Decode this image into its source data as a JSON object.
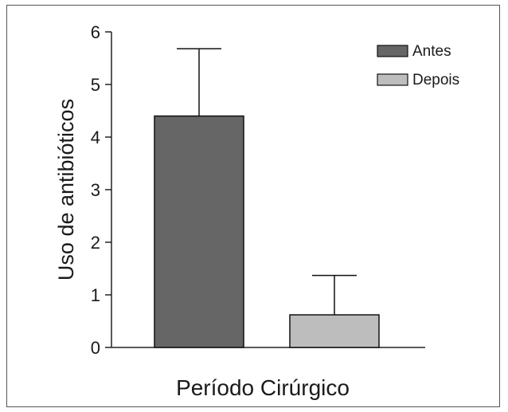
{
  "chart_data": {
    "type": "bar",
    "title": "",
    "xlabel": "Período Cirúrgico",
    "ylabel": "Uso de antibióticos",
    "ylim": [
      0,
      6
    ],
    "yticks": [
      "0",
      "1",
      "2",
      "3",
      "4",
      "5",
      "6"
    ],
    "grid": false,
    "legend_position": "top-right",
    "series": [
      {
        "name": "Antes",
        "value": 4.4,
        "error": 1.28,
        "color": "#666666"
      },
      {
        "name": "Depois",
        "value": 0.62,
        "error": 0.75,
        "color": "#bdbdbd"
      }
    ]
  }
}
